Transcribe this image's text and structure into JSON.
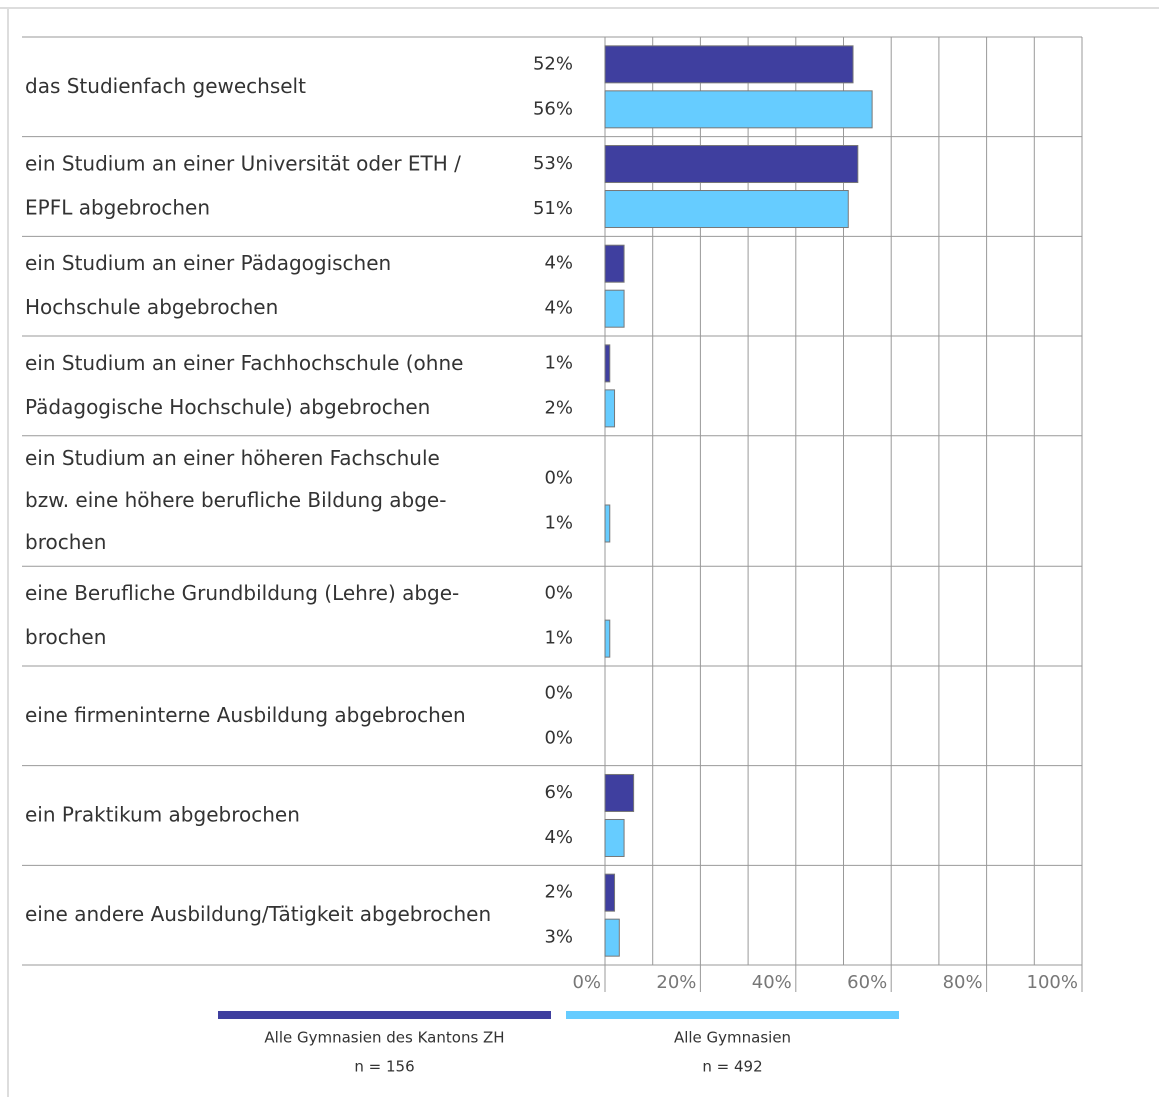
{
  "chart_data": {
    "type": "hbar",
    "categories": [
      [
        "das Studienfach gewechselt"
      ],
      [
        "ein Studium an einer Universität oder ETH /",
        "EPFL abgebrochen"
      ],
      [
        "ein Studium an einer Pädagogischen",
        "Hochschule abgebrochen"
      ],
      [
        "ein Studium an einer Fachhochschule (ohne",
        "Pädagogische Hochschule) abgebrochen"
      ],
      [
        "ein Studium an einer höheren Fachschule",
        "bzw.  eine höhere berufliche Bildung abge-",
        "brochen"
      ],
      [
        "eine Berufliche Grundbildung (Lehre) abge-",
        "brochen"
      ],
      [
        "eine firmeninterne Ausbildung abgebrochen"
      ],
      [
        "ein Praktikum abgebrochen"
      ],
      [
        "eine andere Ausbildung/Tätigkeit abgebrochen"
      ]
    ],
    "series": [
      {
        "name": "Alle Gymnasien des Kantons ZH",
        "note": "n = 156",
        "color": "#3f3f9f",
        "values": [
          52,
          53,
          4,
          1,
          0,
          0,
          0,
          6,
          2
        ],
        "value_labels": [
          "52%",
          "53%",
          "4%",
          "1%",
          "0%",
          "0%",
          "0%",
          "6%",
          "2%"
        ]
      },
      {
        "name": "Alle Gymnasien",
        "note": "n = 492",
        "color": "#66ccff",
        "values": [
          56,
          51,
          4,
          2,
          1,
          1,
          0,
          4,
          3
        ],
        "value_labels": [
          "56%",
          "51%",
          "4%",
          "2%",
          "1%",
          "1%",
          "0%",
          "4%",
          "3%"
        ]
      }
    ],
    "xlim": [
      0,
      100
    ],
    "xticks": [
      {
        "value": 0,
        "label": "0%"
      },
      {
        "value": 20,
        "label": "20%"
      },
      {
        "value": 40,
        "label": "40%"
      },
      {
        "value": 60,
        "label": "60%"
      },
      {
        "value": 80,
        "label": "80%"
      },
      {
        "value": 100,
        "label": "100%"
      }
    ],
    "minor_xticks": [
      10,
      30,
      50,
      70,
      90
    ],
    "grid": true
  }
}
